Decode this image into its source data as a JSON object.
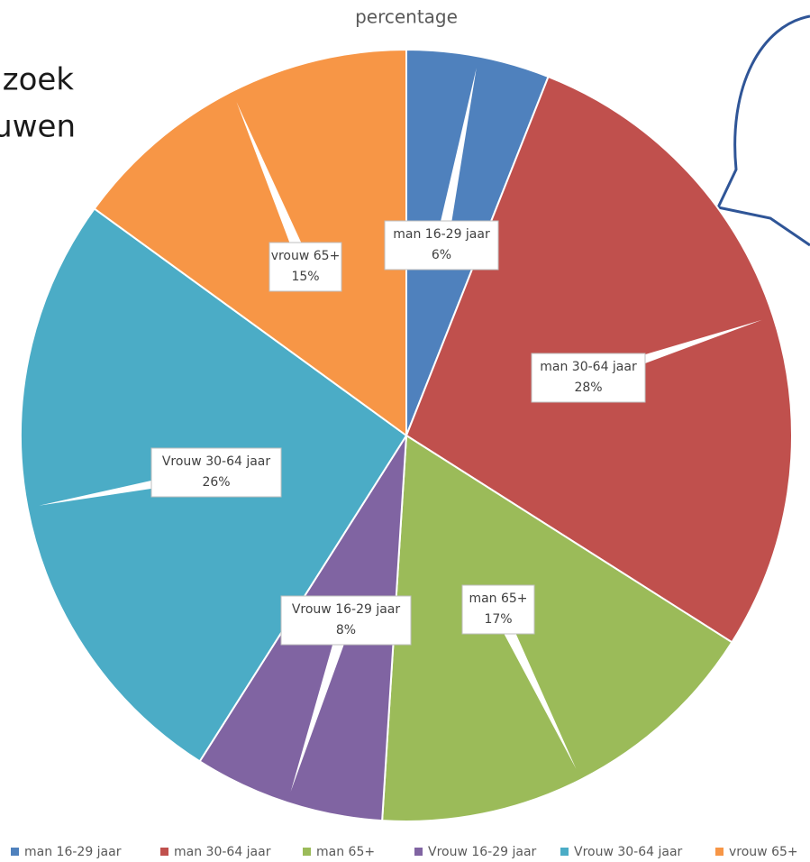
{
  "chart_data": {
    "type": "pie",
    "title": "percentage",
    "annotations": [
      "zoek",
      "uwen"
    ],
    "categories": [
      "man 16-29 jaar",
      "man 30-64 jaar",
      "man 65+",
      "Vrouw 16-29 jaar",
      "Vrouw 30-64 jaar",
      "vrouw 65+"
    ],
    "values": [
      6,
      28,
      17,
      8,
      26,
      15
    ],
    "value_labels": [
      "6%",
      "28%",
      "17%",
      "8%",
      "26%",
      "15%"
    ],
    "colors": [
      "#4f81bd",
      "#c0504d",
      "#9bbb59",
      "#8064a2",
      "#4bacc6",
      "#f79646"
    ],
    "legend": "bottom"
  }
}
